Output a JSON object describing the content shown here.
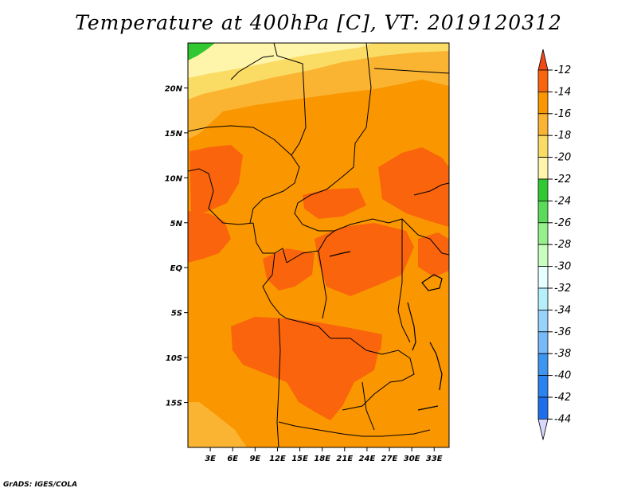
{
  "title": "Temperature at 400hPa [C], VT: 2019120312",
  "footer": "GrADS: IGES/COLA",
  "chart_data": {
    "type": "filled-contour-map",
    "variable": "Temperature at 400hPa",
    "units": "C",
    "valid_time": "2019120312",
    "lon_range": [
      0,
      35
    ],
    "lat_range": [
      -20,
      25
    ],
    "x_ticks": [
      "3E",
      "6E",
      "9E",
      "12E",
      "15E",
      "18E",
      "21E",
      "24E",
      "27E",
      "30E",
      "33E"
    ],
    "y_ticks": [
      "20N",
      "15N",
      "10N",
      "5N",
      "EQ",
      "5S",
      "10S",
      "15S"
    ],
    "colorbar_labels": [
      "-12",
      "-14",
      "-16",
      "-18",
      "-20",
      "-22",
      "-24",
      "-26",
      "-28",
      "-30",
      "-32",
      "-34",
      "-36",
      "-38",
      "-40",
      "-42",
      "-44"
    ],
    "colors": {
      "above_-12": "#f04a19",
      "-12_-14": "#fa640c",
      "-14_-16": "#fa9600",
      "-16_-18": "#fab432",
      "-18_-20": "#fadc64",
      "-20_-22": "#fff5aa",
      "-22_-24": "#32c832",
      "-24_-26": "#5adc5a",
      "-26_-28": "#96f08c",
      "-28_-30": "#c8ffbe",
      "-30_-32": "#e6ffff",
      "-32_-34": "#b4f0fa",
      "-34_-36": "#96d2fa",
      "-36_-38": "#78b9fa",
      "-38_-40": "#3c96f0",
      "-40_-42": "#2882f0",
      "-42_-44": "#1e6eeb",
      "-44_-46": "#1450d2",
      "below_-46": "#0a0a78",
      "land_background": "#fa9600",
      "warm_anomaly": "#fa640c",
      "cool_north": "#fab432",
      "coldest_north": "#fadc64",
      "palest_north": "#fff5aa",
      "green_corner": "#32c832",
      "below_-44": "#d8d8ff"
    }
  }
}
